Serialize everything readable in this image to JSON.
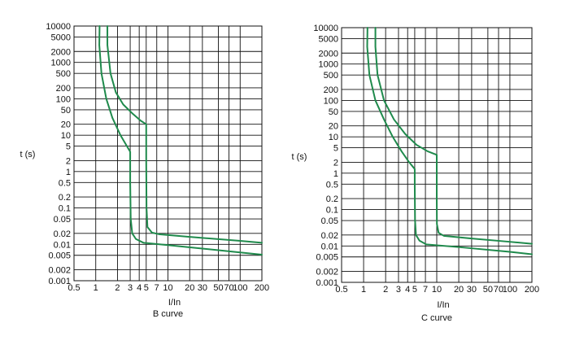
{
  "chart_data": [
    {
      "type": "line",
      "title": "B  curve",
      "xlabel": "I/In",
      "ylabel": "t (s)",
      "x_scale": "log",
      "y_scale": "log",
      "xlim": [
        0.5,
        200
      ],
      "ylim": [
        0.001,
        10000
      ],
      "grid": true,
      "x_ticks": [
        "0.5",
        "1",
        "2",
        "3",
        "4",
        "5",
        "7",
        "10",
        "20",
        "30",
        "50",
        "70",
        "100",
        "200"
      ],
      "x_tick_values": [
        0.5,
        1,
        2,
        3,
        4,
        5,
        7,
        10,
        20,
        30,
        50,
        70,
        100,
        200
      ],
      "y_ticks": [
        "10000",
        "5000",
        "2000",
        "1000",
        "500",
        "200",
        "100",
        "50",
        "20",
        "10",
        "5",
        "2",
        "1",
        "0.5",
        "0.2",
        "0.1",
        "0.05",
        "0.02",
        "0.01",
        "0.005",
        "0.002",
        "0.001"
      ],
      "y_tick_values": [
        10000,
        5000,
        2000,
        1000,
        500,
        200,
        100,
        50,
        20,
        10,
        5,
        2,
        1,
        0.5,
        0.2,
        0.1,
        0.05,
        0.02,
        0.01,
        0.005,
        0.002,
        0.001
      ],
      "series": [
        {
          "values": [
            [
              1.13,
              10000
            ],
            [
              1.12,
              3000
            ],
            [
              1.2,
              500
            ],
            [
              1.4,
              100
            ],
            [
              1.7,
              30
            ],
            [
              2.2,
              10
            ],
            [
              2.7,
              5
            ],
            [
              3.0,
              3.5
            ],
            [
              3.0,
              0.5
            ],
            [
              3.05,
              0.05
            ],
            [
              3.2,
              0.02
            ],
            [
              3.6,
              0.014
            ],
            [
              4.6,
              0.011
            ],
            [
              10,
              0.0095
            ],
            [
              50,
              0.0069
            ],
            [
              200,
              0.0052
            ]
          ]
        },
        {
          "values": [
            [
              1.45,
              10000
            ],
            [
              1.45,
              3000
            ],
            [
              1.6,
              500
            ],
            [
              1.9,
              150
            ],
            [
              2.4,
              70
            ],
            [
              3.2,
              40
            ],
            [
              4.2,
              25
            ],
            [
              5.0,
              20
            ],
            [
              5.0,
              2
            ],
            [
              5.05,
              0.1
            ],
            [
              5.2,
              0.03
            ],
            [
              6,
              0.021
            ],
            [
              7.5,
              0.019
            ],
            [
              20,
              0.016
            ],
            [
              100,
              0.0125
            ],
            [
              200,
              0.011
            ]
          ]
        }
      ]
    },
    {
      "type": "line",
      "title": "C  curve",
      "xlabel": "I/In",
      "ylabel": "t (s)",
      "x_scale": "log",
      "y_scale": "log",
      "xlim": [
        0.5,
        200
      ],
      "ylim": [
        0.001,
        10000
      ],
      "grid": true,
      "x_ticks": [
        "0.5",
        "1",
        "2",
        "3",
        "4",
        "5",
        "7",
        "10",
        "20",
        "30",
        "50",
        "70",
        "100",
        "200"
      ],
      "x_tick_values": [
        0.5,
        1,
        2,
        3,
        4,
        5,
        7,
        10,
        20,
        30,
        50,
        70,
        100,
        200
      ],
      "y_ticks": [
        "10000",
        "5000",
        "2000",
        "1000",
        "500",
        "200",
        "100",
        "50",
        "20",
        "10",
        "5",
        "2",
        "1",
        "0.5",
        "0.2",
        "0.1",
        "0.05",
        "0.02",
        "0.01",
        "0.005",
        "0.002",
        "0.001"
      ],
      "y_tick_values": [
        10000,
        5000,
        2000,
        1000,
        500,
        200,
        100,
        50,
        20,
        10,
        5,
        2,
        1,
        0.5,
        0.2,
        0.1,
        0.05,
        0.02,
        0.01,
        0.005,
        0.002,
        0.001
      ],
      "series": [
        {
          "values": [
            [
              1.13,
              10000
            ],
            [
              1.12,
              3000
            ],
            [
              1.2,
              500
            ],
            [
              1.45,
              100
            ],
            [
              1.9,
              30
            ],
            [
              2.5,
              10
            ],
            [
              3.3,
              4
            ],
            [
              4.2,
              2
            ],
            [
              5.0,
              1.3
            ],
            [
              5.0,
              0.5
            ],
            [
              5.05,
              0.05
            ],
            [
              5.2,
              0.02
            ],
            [
              5.8,
              0.014
            ],
            [
              7.2,
              0.011
            ],
            [
              20,
              0.0093
            ],
            [
              100,
              0.0069
            ],
            [
              200,
              0.0059
            ]
          ]
        },
        {
          "values": [
            [
              1.45,
              10000
            ],
            [
              1.45,
              3000
            ],
            [
              1.55,
              500
            ],
            [
              1.9,
              100
            ],
            [
              2.6,
              30
            ],
            [
              3.7,
              12
            ],
            [
              5.3,
              6
            ],
            [
              7.5,
              4
            ],
            [
              10,
              3.2
            ],
            [
              10,
              1
            ],
            [
              10,
              0.2
            ],
            [
              10.05,
              0.04
            ],
            [
              10.6,
              0.023
            ],
            [
              12.5,
              0.019
            ],
            [
              30,
              0.016
            ],
            [
              100,
              0.013
            ],
            [
              200,
              0.0115
            ]
          ]
        }
      ]
    }
  ]
}
